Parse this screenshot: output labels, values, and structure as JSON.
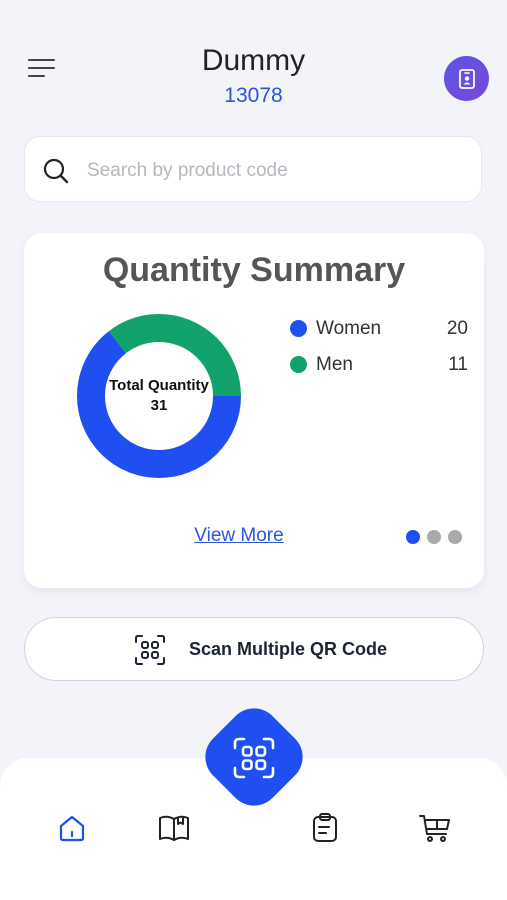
{
  "header": {
    "title": "Dummy",
    "subtitle": "13078",
    "menu_icon": "hamburger-menu-icon",
    "profile_icon": "id-badge-icon"
  },
  "search": {
    "placeholder": "Search by product code",
    "value": "",
    "icon": "search-icon"
  },
  "summary": {
    "title": "Quantity Summary",
    "total_label": "Total Quantity",
    "total_value": "31",
    "view_more": "View More",
    "page_count": 3,
    "active_page": 0
  },
  "chart_data": {
    "type": "pie",
    "title": "Quantity Summary",
    "categories": [
      "Women",
      "Men"
    ],
    "values": [
      20,
      11
    ],
    "colors": [
      "#1f4ff0",
      "#11a36b"
    ],
    "center_label": "Total Quantity",
    "center_value": 31,
    "legend_position": "right"
  },
  "legend": [
    {
      "name": "Women",
      "value": "20",
      "color": "#1f4ff0"
    },
    {
      "name": "Men",
      "value": "11",
      "color": "#11a36b"
    }
  ],
  "scan_button": {
    "label": "Scan Multiple QR Code",
    "icon": "qr-scan-icon"
  },
  "bottom_nav": {
    "items": [
      {
        "name": "home",
        "icon": "home-icon",
        "active": true
      },
      {
        "name": "catalog",
        "icon": "book-icon",
        "active": false
      },
      {
        "name": "orders",
        "icon": "clipboard-icon",
        "active": false
      },
      {
        "name": "cart",
        "icon": "cart-icon",
        "active": false
      }
    ],
    "fab_icon": "qr-scan-icon"
  },
  "colors": {
    "accent": "#1f4ff0",
    "link": "#2b56d8",
    "men": "#11a36b",
    "background": "#f3f3fa",
    "dot_inactive": "#a9a9a9"
  }
}
